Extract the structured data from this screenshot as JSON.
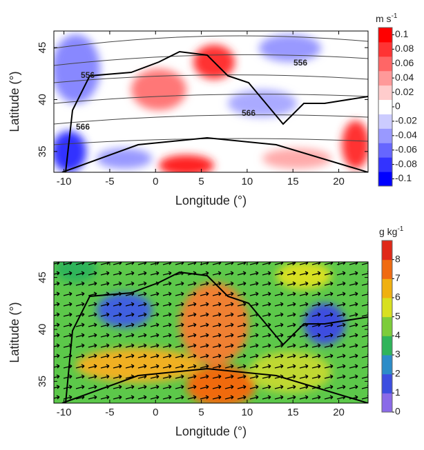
{
  "chart_data": [
    {
      "type": "heatmap",
      "xlabel": "Longitude (°)",
      "ylabel": "Latitude (°)",
      "xlim": [
        -11.1,
        23.2
      ],
      "ylim": [
        33,
        46.6
      ],
      "xticks": [
        -10,
        -5,
        0,
        5,
        10,
        15,
        20
      ],
      "yticks": [
        35,
        40,
        45
      ],
      "colorbar": {
        "unit": "m s",
        "unit_exp": "-1",
        "clim": [
          -0.11,
          0.11
        ],
        "ticks": [
          0.1,
          0.08,
          0.06,
          0.04,
          0.02,
          0,
          -0.02,
          -0.04,
          -0.06,
          -0.08,
          -0.1
        ],
        "colors": [
          "#0000ff",
          "#3333ff",
          "#6666ff",
          "#9999ff",
          "#ccccff",
          "#ffffff",
          "#ffcccc",
          "#ff9999",
          "#ff6666",
          "#ff3333",
          "#ff0000"
        ]
      },
      "annotations": [
        "556",
        "556",
        "566",
        "566"
      ]
    },
    {
      "type": "heatmap",
      "xlabel": "Longitude (°)",
      "ylabel": "Latitude (°)",
      "xlim": [
        -11.1,
        23.2
      ],
      "ylim": [
        32.9,
        46.5
      ],
      "xticks": [
        -10,
        -5,
        0,
        5,
        10,
        15,
        20
      ],
      "yticks": [
        35,
        40,
        45
      ],
      "colorbar": {
        "unit": "g kg",
        "unit_exp": "-1",
        "clim": [
          0,
          9
        ],
        "ticks": [
          0,
          1,
          2,
          3,
          4,
          5,
          6,
          7,
          8
        ],
        "colors": [
          "#8a6ae8",
          "#3c4ee0",
          "#2c8cc8",
          "#2fb45a",
          "#7ccc3a",
          "#d8e020",
          "#f0b010",
          "#f06a10",
          "#e02818"
        ]
      },
      "annotations": []
    }
  ]
}
